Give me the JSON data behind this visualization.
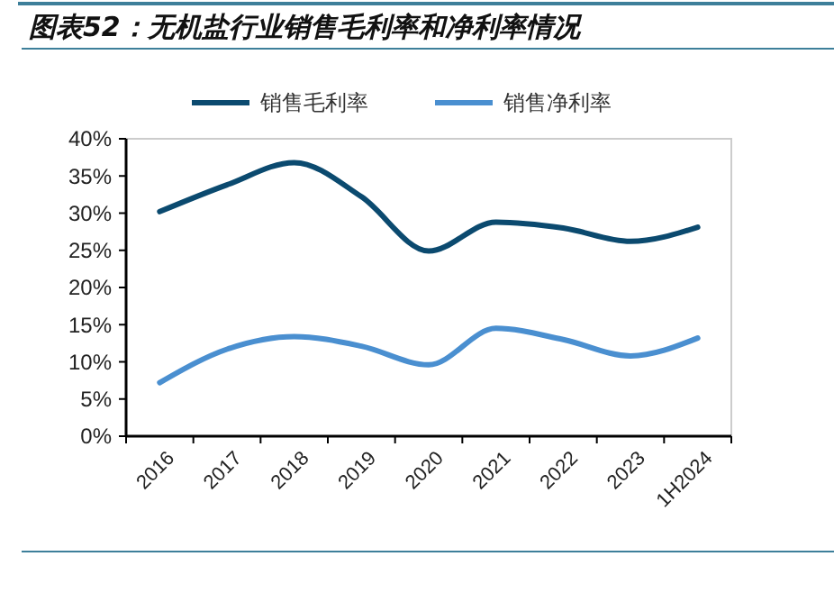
{
  "chart_data": {
    "type": "line",
    "title": "图表52：无机盐行业销售毛利率和净利率情况",
    "categories": [
      "2016",
      "2017",
      "2018",
      "2019",
      "2020",
      "2021",
      "2022",
      "2023",
      "1H2024"
    ],
    "series": [
      {
        "name": "销售毛利率",
        "color": "#0b4a6f",
        "values": [
          30.2,
          33.8,
          36.8,
          32.2,
          24.9,
          28.8,
          28.0,
          26.2,
          28.1
        ]
      },
      {
        "name": "销售净利率",
        "color": "#4a8fd0",
        "values": [
          7.2,
          11.7,
          13.4,
          12.1,
          9.6,
          14.5,
          13.0,
          10.8,
          13.2
        ]
      }
    ],
    "ylim": [
      0,
      40
    ],
    "yticks": [
      {
        "value": 0,
        "label": "0%"
      },
      {
        "value": 5,
        "label": "5%"
      },
      {
        "value": 10,
        "label": "10%"
      },
      {
        "value": 15,
        "label": "15%"
      },
      {
        "value": 20,
        "label": "20%"
      },
      {
        "value": 25,
        "label": "25%"
      },
      {
        "value": 30,
        "label": "30%"
      },
      {
        "value": 35,
        "label": "35%"
      },
      {
        "value": 40,
        "label": "40%"
      }
    ],
    "legend": "top",
    "marker": "none",
    "line_style": "solid",
    "grid": false
  }
}
